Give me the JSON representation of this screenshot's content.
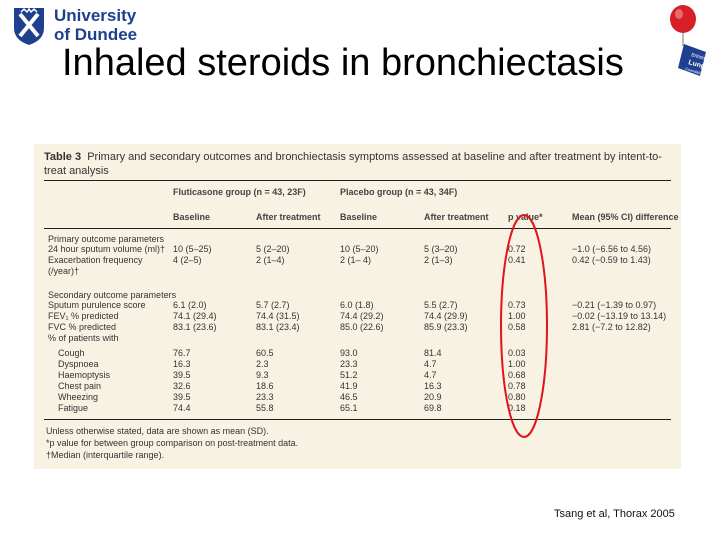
{
  "logo": {
    "line1": "University",
    "line2": "of Dundee",
    "color": "#1f3f8f"
  },
  "balloon": {
    "label": [
      "British",
      "Lung",
      "Foundation"
    ],
    "balloon_color": "#d61f26",
    "badge_color": "#1f3f8f"
  },
  "title": "Inhaled steroids in bronchiectasis",
  "table": {
    "caption_label": "Table 3",
    "caption_text": "Primary and secondary outcomes and bronchiectasis symptoms assessed at baseline and after treatment by intent-to-treat analysis",
    "group_headers": [
      "Fluticasone group (n = 43, 23F)",
      "Placebo group (n = 43, 34F)"
    ],
    "column_headers": [
      "Baseline",
      "After treatment",
      "Baseline",
      "After treatment",
      "p value*",
      "Mean (95% CI) difference"
    ],
    "primary_section": "Primary outcome parameters",
    "secondary_section": "Secondary outcome parameters",
    "rows": [
      {
        "label": "24 hour sputum volume (ml)†",
        "fb": "10 (5–25)",
        "fa": "5 (2–20)",
        "pb": "10 (5–20)",
        "pa": "5 (3–20)",
        "p": "0.72",
        "diff": "−1.0 (−6.56 to 4.56)"
      },
      {
        "label": "Exacerbation frequency",
        "label2": "(/year)†",
        "fb": "4 (2–5)",
        "fa": "2 (1–4)",
        "pb": "2 (1– 4)",
        "pa": "2 (1–3)",
        "p": "0.41",
        "diff": "0.42 (−0.59 to 1.43)"
      },
      {
        "label": "Sputum purulence score",
        "fb": "6.1 (2.0)",
        "fa": "5.7 (2.7)",
        "pb": "6.0 (1.8)",
        "pa": "5.5 (2.7)",
        "p": "0.73",
        "diff": "−0.21 (−1.39 to 0.97)"
      },
      {
        "label": "FEV₁ % predicted",
        "fb": "74.1 (29.4)",
        "fa": "74.4 (31.5)",
        "pb": "74.4 (29.2)",
        "pa": "74.4 (29.9)",
        "p": "1.00",
        "diff": "−0.02 (−13.19 to 13.14)"
      },
      {
        "label": "FVC % predicted",
        "fb": "83.1 (23.6)",
        "fa": "83.1 (23.4)",
        "pb": "85.0 (22.6)",
        "pa": "85.9 (23.3)",
        "p": "0.58",
        "diff": "2.81 (−7.2 to 12.82)"
      },
      {
        "label": "% of patients with"
      },
      {
        "label": "Cough",
        "fb": "76.7",
        "fa": "60.5",
        "pb": "93.0",
        "pa": "81.4",
        "p": "0.03"
      },
      {
        "label": "Dyspnoea",
        "fb": "16.3",
        "fa": "2.3",
        "pb": "23.3",
        "pa": "4.7",
        "p": "1.00"
      },
      {
        "label": "Haemoptysis",
        "fb": "39.5",
        "fa": "9.3",
        "pb": "51.2",
        "pa": "4.7",
        "p": "0.68"
      },
      {
        "label": "Chest pain",
        "fb": "32.6",
        "fa": "18.6",
        "pb": "41.9",
        "pa": "16.3",
        "p": "0.78"
      },
      {
        "label": "Wheezing",
        "fb": "39.5",
        "fa": "23.3",
        "pb": "46.5",
        "pa": "20.9",
        "p": "0.80"
      },
      {
        "label": "Fatigue",
        "fb": "74.4",
        "fa": "55.8",
        "pb": "65.1",
        "pa": "69.8",
        "p": "0.18"
      }
    ],
    "footnotes": [
      "Unless otherwise stated, data are shown as mean (SD).",
      "*p value for between group comparison on post-treatment data.",
      "†Median (interquartile range)."
    ],
    "background": "#f7f2e2",
    "highlight_color": "#e0141b"
  },
  "citation": "Tsang et al, Thorax 2005"
}
